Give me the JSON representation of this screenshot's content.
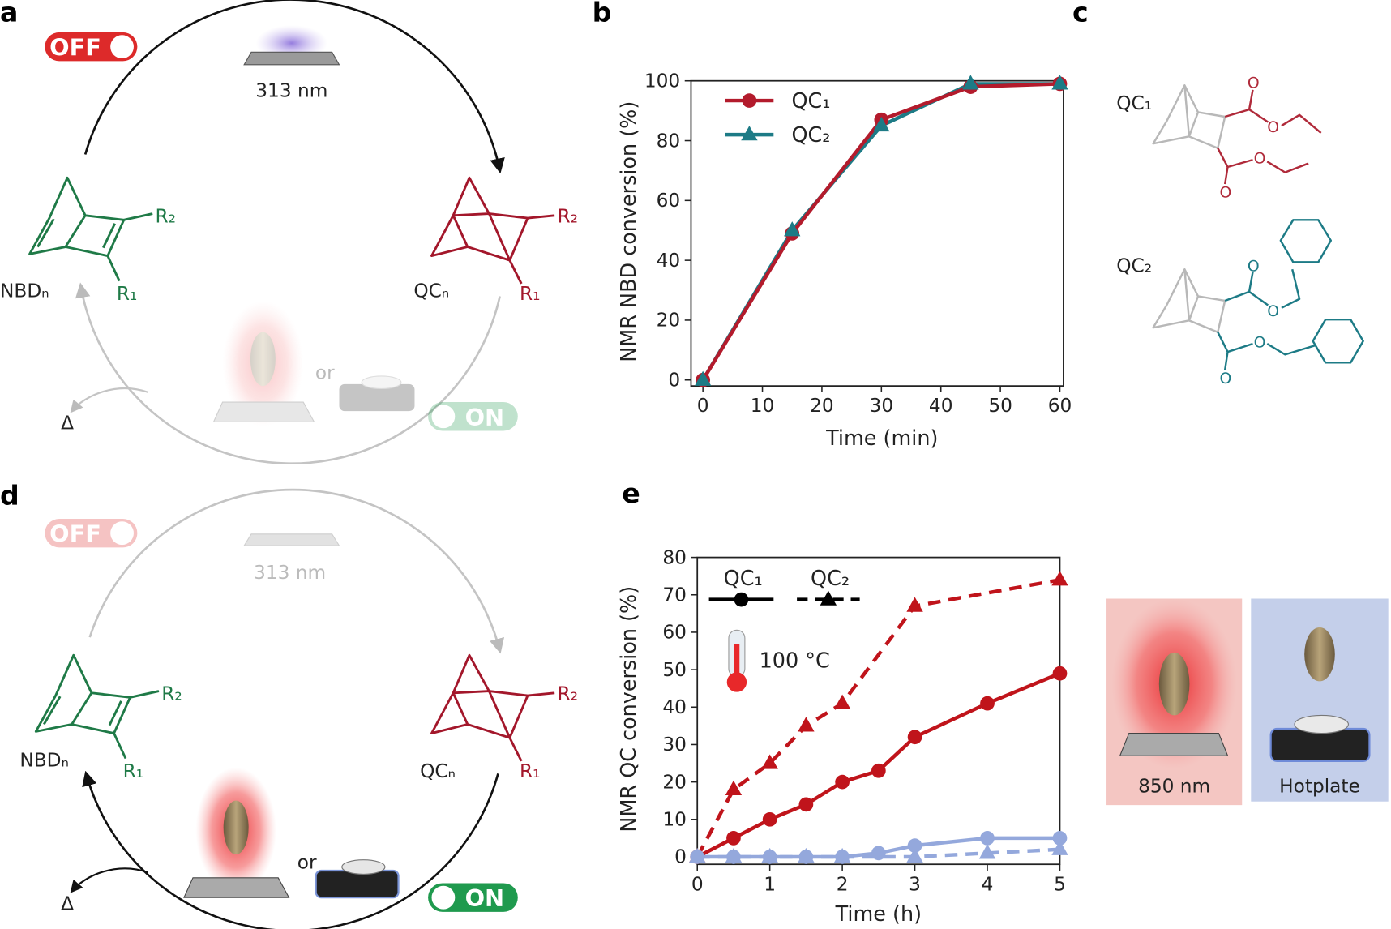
{
  "panel_labels": {
    "a": "a",
    "b": "b",
    "c": "c",
    "d": "d",
    "e": "e"
  },
  "scheme_a": {
    "switch_off": "OFF",
    "switch_on": "ON",
    "irradiation": "313 nm",
    "reactant": "NBDₙ",
    "product": "QCₙ",
    "nbd_r2": "R₂",
    "nbd_r1": "R₁",
    "qc_r2": "R₂",
    "qc_r1": "R₁",
    "or": "or",
    "heat": "Δ"
  },
  "scheme_d": {
    "switch_off": "OFF",
    "switch_on": "ON",
    "irradiation": "313 nm",
    "reactant": "NBDₙ",
    "product": "QCₙ",
    "nbd_r2": "R₂",
    "nbd_r1": "R₁",
    "qc_r2": "R₂",
    "qc_r1": "R₁",
    "or": "or",
    "heat": "Δ"
  },
  "structures_c": [
    {
      "label": "QC₁",
      "atoms": [
        "O",
        "O",
        "O",
        "O"
      ]
    },
    {
      "label": "QC₂",
      "atoms": [
        "O",
        "O",
        "O",
        "O"
      ]
    }
  ],
  "chart_data": [
    {
      "type": "line",
      "x_label": "Time (min)",
      "y_label": "NMR NBD conversion (%)",
      "xlim": [
        -2,
        60.6
      ],
      "ylim": [
        -2,
        100
      ],
      "xticks": [
        0,
        10,
        20,
        30,
        40,
        50,
        60
      ],
      "yticks": [
        0,
        20,
        40,
        60,
        80,
        100
      ],
      "legend": "upper left",
      "series": [
        {
          "name": "QC₁",
          "color": "#b31b2c",
          "marker": "circle",
          "dash": false,
          "x": [
            0,
            15,
            30,
            45,
            60
          ],
          "values": [
            0,
            49,
            87,
            98,
            99
          ]
        },
        {
          "name": "QC₂",
          "color": "#1d7b86",
          "marker": "triangle",
          "dash": false,
          "x": [
            0,
            15,
            30,
            45,
            60
          ],
          "values": [
            0,
            50,
            85,
            99,
            99
          ]
        }
      ]
    },
    {
      "type": "line",
      "x_label": "Time (h)",
      "y_label": "NMR QC conversion (%)",
      "annotation": "100 °C",
      "xlim": [
        0,
        5
      ],
      "ylim": [
        -2,
        80
      ],
      "xticks": [
        0,
        1,
        2,
        3,
        4,
        5
      ],
      "yticks": [
        0,
        10,
        20,
        30,
        40,
        50,
        60,
        70,
        80
      ],
      "legend": "upper left",
      "legend_color": "#000000",
      "series": [
        {
          "name": "QC₁",
          "color": "#c0141b",
          "marker": "circle",
          "dash": false,
          "x": [
            0,
            0.5,
            1,
            1.5,
            2,
            2.5,
            3,
            4,
            5
          ],
          "values": [
            0,
            5,
            10,
            14,
            20,
            23,
            32,
            41,
            49
          ]
        },
        {
          "name": "QC₂",
          "color": "#c0141b",
          "marker": "triangle",
          "dash": true,
          "x": [
            0,
            0.5,
            1,
            1.5,
            2,
            3,
            5
          ],
          "values": [
            0,
            18,
            25,
            35,
            41,
            67,
            74
          ]
        },
        {
          "name": "QC₁",
          "color": "#94a8dc",
          "marker": "circle",
          "dash": false,
          "x": [
            0,
            0.5,
            1,
            1.5,
            2,
            2.5,
            3,
            4,
            5
          ],
          "values": [
            0,
            0,
            0,
            0,
            0,
            1,
            3,
            5,
            5
          ]
        },
        {
          "name": "QC₂",
          "color": "#94a8dc",
          "marker": "triangle",
          "dash": true,
          "x": [
            0,
            0.5,
            1,
            1.5,
            2,
            3,
            4,
            5
          ],
          "values": [
            0,
            0,
            0,
            0,
            0,
            0,
            1,
            2
          ]
        }
      ],
      "conditions": [
        {
          "label": "850 nm",
          "color": "#f4c6c2"
        },
        {
          "label": "Hotplate",
          "color": "#c4cfea"
        }
      ]
    }
  ]
}
